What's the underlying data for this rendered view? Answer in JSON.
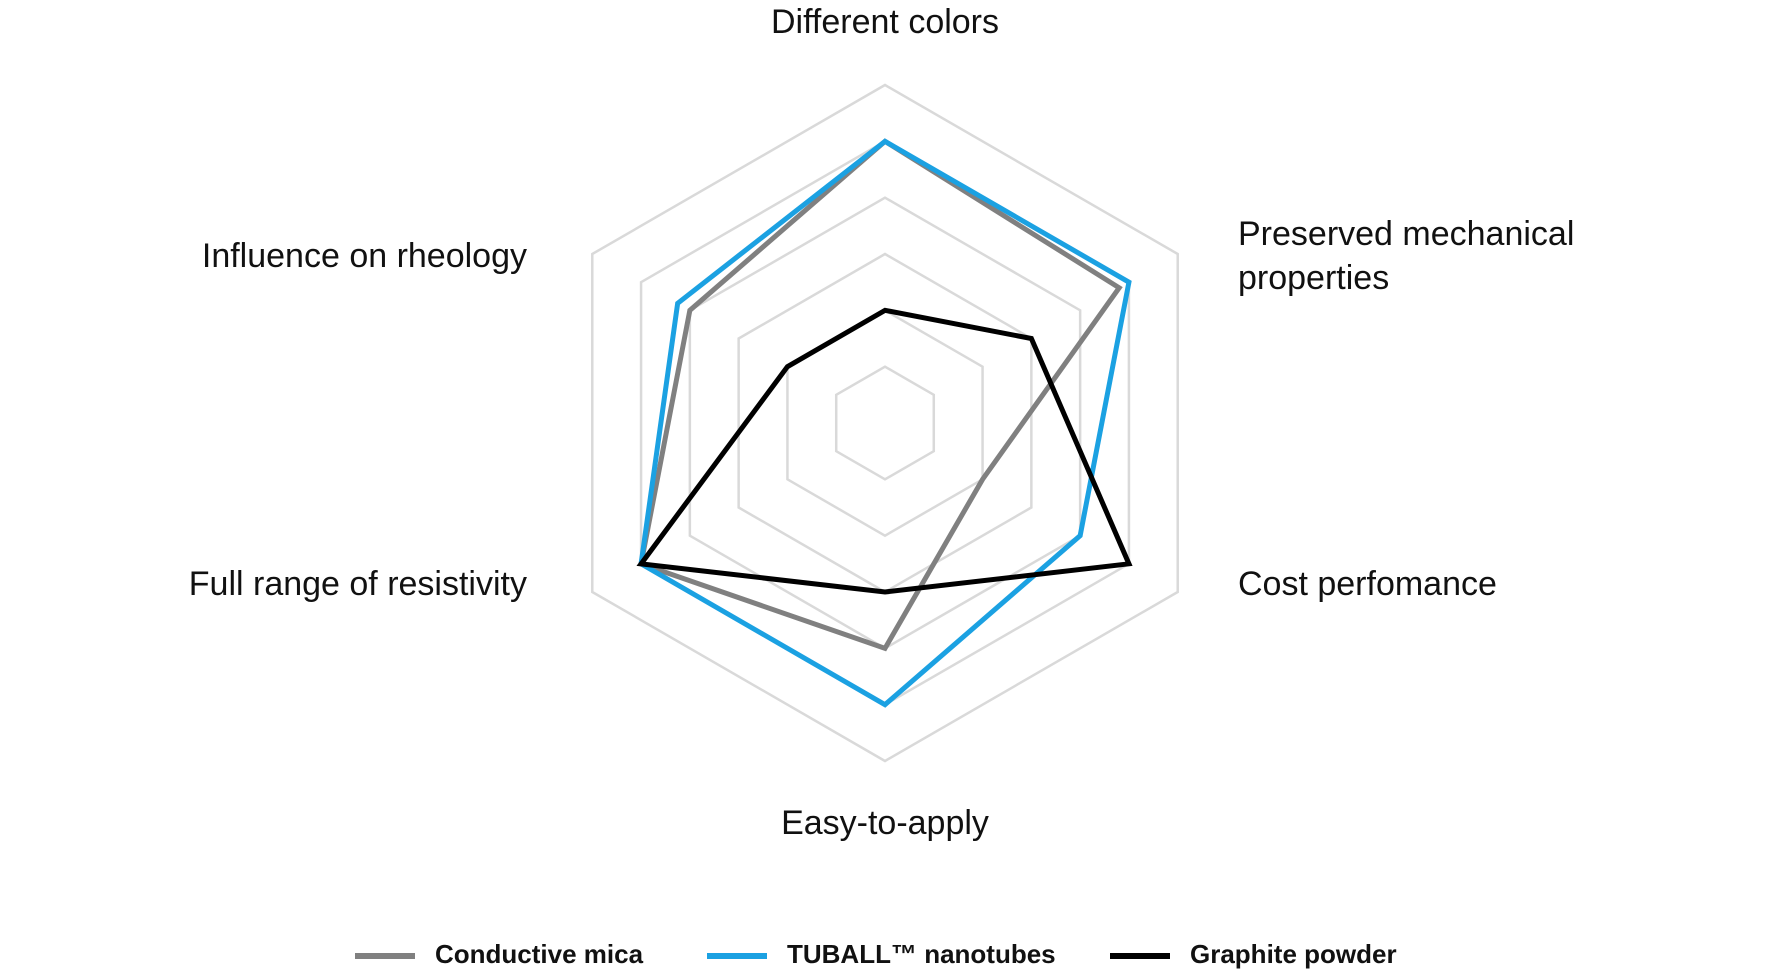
{
  "chart_data": {
    "type": "radar",
    "categories": [
      "Different colors",
      "Preserved mechanical properties",
      "Cost perfomance",
      "Easy-to-apply",
      "Full range of resistivity",
      "Influence on rheology"
    ],
    "rlim": [
      0,
      6
    ],
    "rticks": [
      1,
      2,
      3,
      4,
      5,
      6
    ],
    "grid": true,
    "legend": "bottom",
    "series": [
      {
        "name": "Conductive mica",
        "color": "#808080",
        "values": [
          5,
          4.8,
          2,
          4,
          5,
          4
        ]
      },
      {
        "name": "TUBALL™  nanotubes",
        "color": "#1ba1e2",
        "values": [
          5,
          5,
          4,
          5,
          5,
          4.25
        ]
      },
      {
        "name": "Graphite powder",
        "color": "#000000",
        "values": [
          2,
          3,
          5,
          3,
          5,
          2
        ]
      }
    ]
  }
}
